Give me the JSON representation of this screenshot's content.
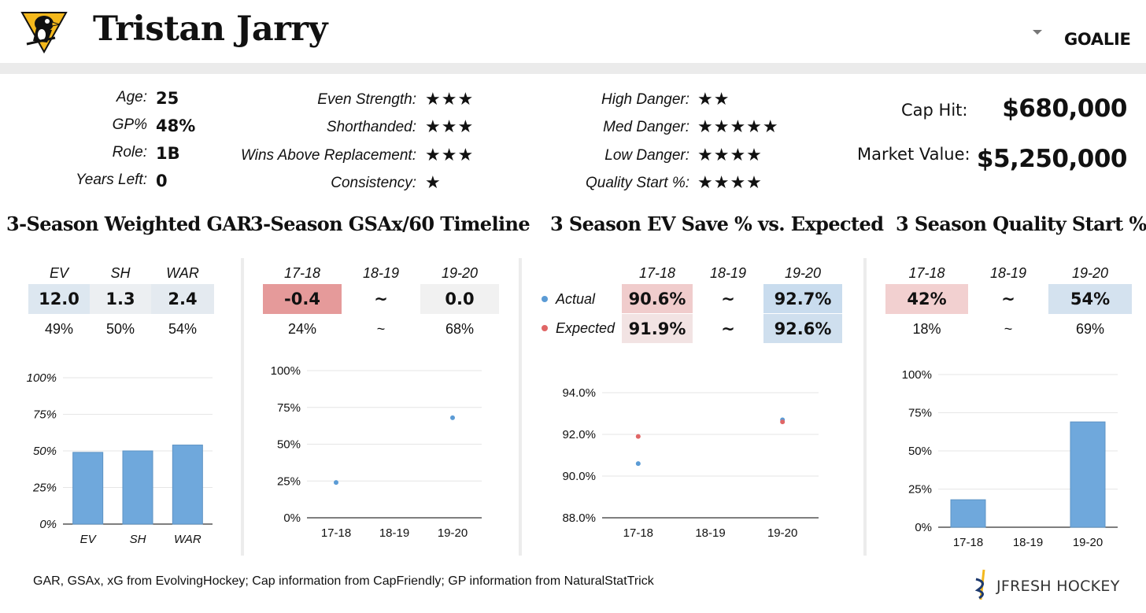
{
  "header": {
    "player_name": "Tristan Jarry",
    "position": "GOALIE",
    "team_logo_icon": "penguins-logo-icon",
    "team_colors": {
      "gold": "#F4B81C",
      "black": "#111111"
    }
  },
  "bio": [
    {
      "label": "Age:",
      "value": "25"
    },
    {
      "label": "GP%",
      "value": "48%"
    },
    {
      "label": "Role:",
      "value": "1B"
    },
    {
      "label": "Years Left:",
      "value": "0"
    }
  ],
  "ratings_left": [
    {
      "label": "Even Strength:",
      "stars": 3
    },
    {
      "label": "Shorthanded:",
      "stars": 3
    },
    {
      "label": "Wins Above Replacement:",
      "stars": 3
    },
    {
      "label": "Consistency:",
      "stars": 1
    }
  ],
  "ratings_right": [
    {
      "label": "High Danger:",
      "stars": 2
    },
    {
      "label": "Med Danger:",
      "stars": 5
    },
    {
      "label": "Low Danger:",
      "stars": 4
    },
    {
      "label": "Quality Start %:",
      "stars": 4
    }
  ],
  "contract": {
    "cap_hit_label": "Cap Hit:",
    "cap_hit": "$680,000",
    "market_label": "Market Value:",
    "market_value": "$5,250,000"
  },
  "sections": {
    "gar_title": "3-Season Weighted GAR",
    "gsax_title": "3-Season GSAx/60 Timeline",
    "ev_title": "3 Season EV Save % vs. Expected",
    "qs_title": "3 Season Quality Start %"
  },
  "colors": {
    "bar": "#6fa8dc",
    "high": "#e06666",
    "low": "#9fc5e8",
    "actual_dot": "#5b9bd5",
    "expected_dot": "#e06666"
  },
  "chart_data": [
    {
      "type": "bar",
      "categories": [
        "EV",
        "SH",
        "WAR"
      ],
      "values": [
        49,
        50,
        54
      ],
      "table_values": [
        "12.0",
        "1.3",
        "2.4"
      ],
      "table_pcts": [
        "49%",
        "50%",
        "54%"
      ],
      "yticks": [
        "100%",
        "75%",
        "50%",
        "25%",
        "0%"
      ],
      "ylim": [
        0,
        100
      ]
    },
    {
      "type": "scatter",
      "categories": [
        "17-18",
        "18-19",
        "19-20"
      ],
      "values": [
        24,
        null,
        68
      ],
      "table_values": [
        "-0.4",
        "~",
        "0.0"
      ],
      "table_pcts": [
        "24%",
        "~",
        "68%"
      ],
      "yticks": [
        "100%",
        "75%",
        "50%",
        "25%",
        "0%"
      ],
      "ylim": [
        0,
        100
      ]
    },
    {
      "type": "scatter",
      "categories": [
        "17-18",
        "18-19",
        "19-20"
      ],
      "series": [
        {
          "name": "Actual",
          "values": [
            90.6,
            null,
            92.7
          ],
          "labels": [
            "90.6%",
            "~",
            "92.7%"
          ]
        },
        {
          "name": "Expected",
          "values": [
            91.9,
            null,
            92.6
          ],
          "labels": [
            "91.9%",
            "~",
            "92.6%"
          ]
        }
      ],
      "yticks": [
        "94.0%",
        "92.0%",
        "90.0%",
        "88.0%"
      ],
      "ylim": [
        88,
        94
      ]
    },
    {
      "type": "bar",
      "categories": [
        "17-18",
        "18-19",
        "19-20"
      ],
      "values": [
        18,
        0,
        69
      ],
      "table_values": [
        "42%",
        "~",
        "54%"
      ],
      "table_pcts": [
        "18%",
        "~",
        "69%"
      ],
      "yticks": [
        "100%",
        "75%",
        "50%",
        "25%",
        "0%"
      ],
      "ylim": [
        0,
        100
      ]
    }
  ],
  "footer": {
    "sources": "GAR, GSAx, xG from EvolvingHockey; Cap information from CapFriendly; GP information from NaturalStatTrick",
    "brand": "JFRESH HOCKEY"
  }
}
